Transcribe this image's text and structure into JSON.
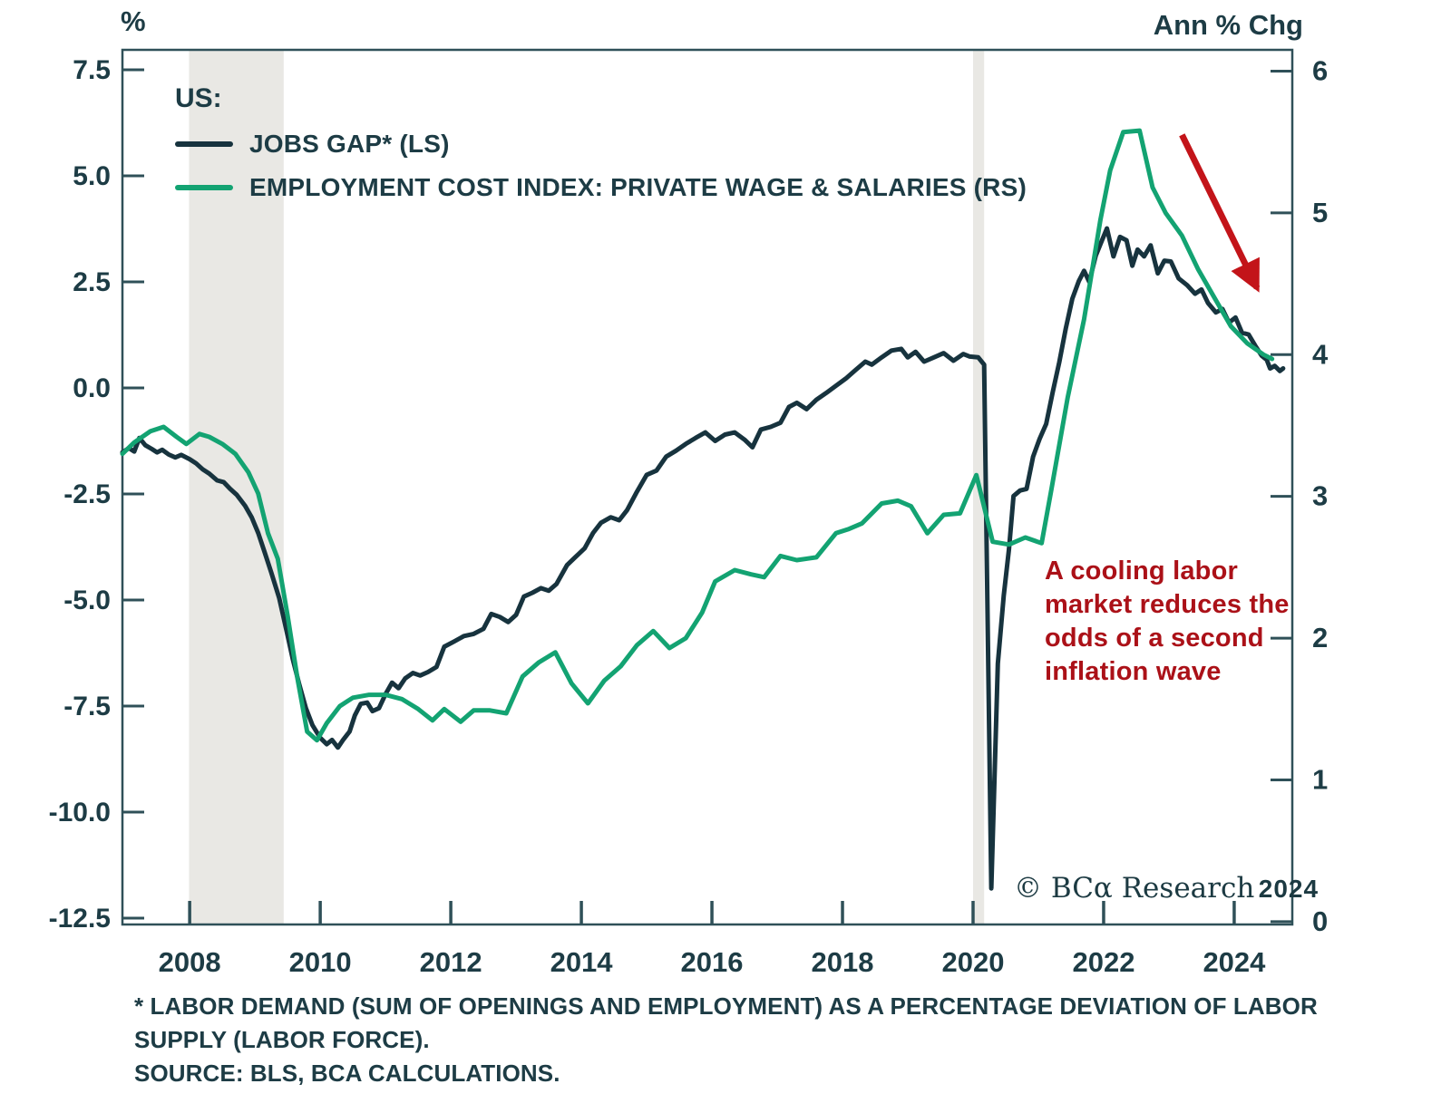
{
  "legend": {
    "group_label": "US:",
    "items": [
      {
        "label": "JOBS GAP* (LS)",
        "color": "#17333e"
      },
      {
        "label": "EMPLOYMENT COST INDEX: PRIVATE WAGE & SALARIES (RS)",
        "color": "#13a372"
      }
    ]
  },
  "annotation": {
    "color": "#ab1118",
    "lines": [
      "A cooling labor",
      "market reduces the",
      "odds of a second",
      "inflation wave"
    ]
  },
  "copyright": {
    "text": "© BCα Research",
    "year": "2024"
  },
  "footnote": {
    "lines": [
      "* LABOR DEMAND (SUM OF OPENINGS AND EMPLOYMENT) AS A PERCENTAGE DEVIATION OF LABOR",
      "SUPPLY (LABOR FORCE).",
      "SOURCE: BLS, BCA CALCULATIONS."
    ]
  },
  "chart_data": {
    "type": "line",
    "title": "",
    "colors": {
      "axis": "#2f5058",
      "tick_label": "#1d3c45",
      "recession_band": "#e9e8e4"
    },
    "x_axis": {
      "range": [
        2006.97,
        2024.89
      ],
      "tick_values": [
        2008,
        2010,
        2012,
        2014,
        2016,
        2018,
        2020,
        2022,
        2024
      ],
      "tick_labels": [
        "2008",
        "2010",
        "2012",
        "2014",
        "2016",
        "2018",
        "2020",
        "2022",
        "2024"
      ]
    },
    "left_axis": {
      "title": "%",
      "range": [
        -12.65,
        7.97
      ],
      "tick_values": [
        7.5,
        5.0,
        2.5,
        0.0,
        -2.5,
        -5.0,
        -7.5,
        -10.0,
        -12.5
      ],
      "tick_labels": [
        "7.5",
        "5.0",
        "2.5",
        "0.0",
        "-2.5",
        "-5.0",
        "-7.5",
        "-10.0",
        "-12.5"
      ]
    },
    "right_axis": {
      "title": "Ann % Chg",
      "range": [
        -0.02,
        6.15
      ],
      "tick_values": [
        6,
        5,
        4,
        3,
        2,
        1,
        0
      ],
      "tick_labels": [
        "6",
        "5",
        "4",
        "3",
        "2",
        "1",
        "0"
      ]
    },
    "recession_bands": [
      {
        "from": 2007.99,
        "to": 2009.44
      },
      {
        "from": 2020.0,
        "to": 2020.17
      }
    ],
    "arrow": {
      "x1": 2023.2,
      "y1": 5.55,
      "x2": 2024.35,
      "y2": 4.47,
      "axis": "right",
      "color": "#c31419"
    },
    "series": [
      {
        "name": "JOBS GAP* (LS)",
        "axis": "left",
        "color": "#17333e",
        "width": 5,
        "points": [
          [
            2006.97,
            -1.52
          ],
          [
            2007.07,
            -1.42
          ],
          [
            2007.15,
            -1.5
          ],
          [
            2007.23,
            -1.18
          ],
          [
            2007.32,
            -1.35
          ],
          [
            2007.42,
            -1.44
          ],
          [
            2007.5,
            -1.52
          ],
          [
            2007.58,
            -1.46
          ],
          [
            2007.68,
            -1.57
          ],
          [
            2007.78,
            -1.64
          ],
          [
            2007.87,
            -1.58
          ],
          [
            2008.0,
            -1.68
          ],
          [
            2008.1,
            -1.78
          ],
          [
            2008.2,
            -1.92
          ],
          [
            2008.3,
            -2.02
          ],
          [
            2008.42,
            -2.18
          ],
          [
            2008.52,
            -2.22
          ],
          [
            2008.62,
            -2.38
          ],
          [
            2008.72,
            -2.52
          ],
          [
            2008.85,
            -2.78
          ],
          [
            2008.95,
            -3.05
          ],
          [
            2009.05,
            -3.42
          ],
          [
            2009.15,
            -3.88
          ],
          [
            2009.25,
            -4.35
          ],
          [
            2009.37,
            -4.95
          ],
          [
            2009.48,
            -5.7
          ],
          [
            2009.58,
            -6.4
          ],
          [
            2009.68,
            -7.0
          ],
          [
            2009.78,
            -7.55
          ],
          [
            2009.88,
            -7.95
          ],
          [
            2010.0,
            -8.25
          ],
          [
            2010.1,
            -8.4
          ],
          [
            2010.18,
            -8.3
          ],
          [
            2010.27,
            -8.48
          ],
          [
            2010.35,
            -8.3
          ],
          [
            2010.45,
            -8.1
          ],
          [
            2010.53,
            -7.72
          ],
          [
            2010.62,
            -7.45
          ],
          [
            2010.72,
            -7.42
          ],
          [
            2010.8,
            -7.62
          ],
          [
            2010.9,
            -7.55
          ],
          [
            2011.0,
            -7.22
          ],
          [
            2011.1,
            -6.95
          ],
          [
            2011.2,
            -7.08
          ],
          [
            2011.3,
            -6.85
          ],
          [
            2011.42,
            -6.72
          ],
          [
            2011.53,
            -6.78
          ],
          [
            2011.65,
            -6.7
          ],
          [
            2011.78,
            -6.58
          ],
          [
            2011.9,
            -6.1
          ],
          [
            2012.05,
            -5.98
          ],
          [
            2012.2,
            -5.85
          ],
          [
            2012.35,
            -5.8
          ],
          [
            2012.5,
            -5.68
          ],
          [
            2012.62,
            -5.33
          ],
          [
            2012.75,
            -5.4
          ],
          [
            2012.88,
            -5.52
          ],
          [
            2013.0,
            -5.35
          ],
          [
            2013.12,
            -4.92
          ],
          [
            2013.25,
            -4.83
          ],
          [
            2013.38,
            -4.72
          ],
          [
            2013.5,
            -4.78
          ],
          [
            2013.62,
            -4.62
          ],
          [
            2013.78,
            -4.18
          ],
          [
            2013.9,
            -4.0
          ],
          [
            2014.05,
            -3.78
          ],
          [
            2014.18,
            -3.42
          ],
          [
            2014.3,
            -3.18
          ],
          [
            2014.45,
            -3.05
          ],
          [
            2014.58,
            -3.12
          ],
          [
            2014.7,
            -2.88
          ],
          [
            2014.85,
            -2.45
          ],
          [
            2015.0,
            -2.05
          ],
          [
            2015.15,
            -1.95
          ],
          [
            2015.3,
            -1.62
          ],
          [
            2015.45,
            -1.48
          ],
          [
            2015.6,
            -1.32
          ],
          [
            2015.75,
            -1.18
          ],
          [
            2015.9,
            -1.05
          ],
          [
            2016.05,
            -1.25
          ],
          [
            2016.2,
            -1.1
          ],
          [
            2016.35,
            -1.05
          ],
          [
            2016.5,
            -1.22
          ],
          [
            2016.62,
            -1.4
          ],
          [
            2016.75,
            -0.98
          ],
          [
            2016.9,
            -0.92
          ],
          [
            2017.05,
            -0.82
          ],
          [
            2017.18,
            -0.45
          ],
          [
            2017.3,
            -0.35
          ],
          [
            2017.45,
            -0.5
          ],
          [
            2017.6,
            -0.28
          ],
          [
            2017.75,
            -0.12
          ],
          [
            2017.9,
            0.05
          ],
          [
            2018.05,
            0.22
          ],
          [
            2018.2,
            0.42
          ],
          [
            2018.35,
            0.62
          ],
          [
            2018.45,
            0.55
          ],
          [
            2018.6,
            0.72
          ],
          [
            2018.75,
            0.88
          ],
          [
            2018.9,
            0.92
          ],
          [
            2019.0,
            0.72
          ],
          [
            2019.12,
            0.85
          ],
          [
            2019.25,
            0.62
          ],
          [
            2019.4,
            0.72
          ],
          [
            2019.55,
            0.82
          ],
          [
            2019.7,
            0.64
          ],
          [
            2019.85,
            0.8
          ],
          [
            2019.95,
            0.74
          ],
          [
            2020.08,
            0.72
          ],
          [
            2020.17,
            0.55
          ],
          [
            2020.28,
            -11.8
          ],
          [
            2020.38,
            -6.5
          ],
          [
            2020.47,
            -4.9
          ],
          [
            2020.55,
            -3.8
          ],
          [
            2020.62,
            -2.55
          ],
          [
            2020.72,
            -2.42
          ],
          [
            2020.82,
            -2.38
          ],
          [
            2020.92,
            -1.62
          ],
          [
            2021.02,
            -1.2
          ],
          [
            2021.12,
            -0.85
          ],
          [
            2021.22,
            -0.1
          ],
          [
            2021.32,
            0.6
          ],
          [
            2021.42,
            1.4
          ],
          [
            2021.52,
            2.1
          ],
          [
            2021.62,
            2.52
          ],
          [
            2021.7,
            2.76
          ],
          [
            2021.78,
            2.5
          ],
          [
            2021.88,
            3.12
          ],
          [
            2021.97,
            3.46
          ],
          [
            2022.05,
            3.76
          ],
          [
            2022.15,
            3.1
          ],
          [
            2022.25,
            3.56
          ],
          [
            2022.35,
            3.48
          ],
          [
            2022.44,
            2.88
          ],
          [
            2022.52,
            3.26
          ],
          [
            2022.62,
            3.1
          ],
          [
            2022.72,
            3.36
          ],
          [
            2022.83,
            2.7
          ],
          [
            2022.93,
            3.0
          ],
          [
            2023.03,
            2.98
          ],
          [
            2023.15,
            2.58
          ],
          [
            2023.28,
            2.42
          ],
          [
            2023.4,
            2.22
          ],
          [
            2023.5,
            2.32
          ],
          [
            2023.6,
            2.0
          ],
          [
            2023.72,
            1.78
          ],
          [
            2023.82,
            1.86
          ],
          [
            2023.92,
            1.54
          ],
          [
            2024.02,
            1.66
          ],
          [
            2024.12,
            1.3
          ],
          [
            2024.22,
            1.26
          ],
          [
            2024.32,
            1.0
          ],
          [
            2024.42,
            0.76
          ],
          [
            2024.5,
            0.66
          ],
          [
            2024.55,
            0.46
          ],
          [
            2024.62,
            0.52
          ],
          [
            2024.7,
            0.4
          ],
          [
            2024.75,
            0.46
          ]
        ]
      },
      {
        "name": "EMPLOYMENT COST INDEX: PRIVATE WAGE & SALARIES (RS)",
        "axis": "right",
        "color": "#13a372",
        "width": 5,
        "points": [
          [
            2006.97,
            3.3
          ],
          [
            2007.15,
            3.38
          ],
          [
            2007.4,
            3.46
          ],
          [
            2007.6,
            3.49
          ],
          [
            2007.8,
            3.42
          ],
          [
            2007.95,
            3.37
          ],
          [
            2008.15,
            3.44
          ],
          [
            2008.3,
            3.42
          ],
          [
            2008.5,
            3.37
          ],
          [
            2008.7,
            3.3
          ],
          [
            2008.9,
            3.17
          ],
          [
            2009.05,
            3.02
          ],
          [
            2009.2,
            2.74
          ],
          [
            2009.35,
            2.56
          ],
          [
            2009.5,
            2.16
          ],
          [
            2009.65,
            1.72
          ],
          [
            2009.8,
            1.34
          ],
          [
            2009.95,
            1.28
          ],
          [
            2010.1,
            1.4
          ],
          [
            2010.3,
            1.52
          ],
          [
            2010.5,
            1.58
          ],
          [
            2010.75,
            1.6
          ],
          [
            2011.0,
            1.6
          ],
          [
            2011.25,
            1.57
          ],
          [
            2011.5,
            1.5
          ],
          [
            2011.72,
            1.42
          ],
          [
            2011.9,
            1.5
          ],
          [
            2012.15,
            1.41
          ],
          [
            2012.35,
            1.49
          ],
          [
            2012.6,
            1.49
          ],
          [
            2012.85,
            1.47
          ],
          [
            2013.1,
            1.73
          ],
          [
            2013.35,
            1.83
          ],
          [
            2013.6,
            1.9
          ],
          [
            2013.85,
            1.68
          ],
          [
            2014.1,
            1.54
          ],
          [
            2014.35,
            1.7
          ],
          [
            2014.6,
            1.8
          ],
          [
            2014.85,
            1.95
          ],
          [
            2015.1,
            2.05
          ],
          [
            2015.35,
            1.93
          ],
          [
            2015.6,
            2.0
          ],
          [
            2015.85,
            2.18
          ],
          [
            2016.05,
            2.4
          ],
          [
            2016.35,
            2.48
          ],
          [
            2016.6,
            2.45
          ],
          [
            2016.8,
            2.43
          ],
          [
            2017.05,
            2.58
          ],
          [
            2017.3,
            2.55
          ],
          [
            2017.6,
            2.57
          ],
          [
            2017.9,
            2.74
          ],
          [
            2018.1,
            2.77
          ],
          [
            2018.3,
            2.81
          ],
          [
            2018.6,
            2.95
          ],
          [
            2018.85,
            2.97
          ],
          [
            2019.05,
            2.93
          ],
          [
            2019.3,
            2.74
          ],
          [
            2019.55,
            2.87
          ],
          [
            2019.8,
            2.88
          ],
          [
            2020.05,
            3.15
          ],
          [
            2020.3,
            2.68
          ],
          [
            2020.55,
            2.66
          ],
          [
            2020.8,
            2.71
          ],
          [
            2021.05,
            2.67
          ],
          [
            2021.2,
            3.05
          ],
          [
            2021.45,
            3.7
          ],
          [
            2021.7,
            4.25
          ],
          [
            2021.95,
            4.95
          ],
          [
            2022.1,
            5.3
          ],
          [
            2022.3,
            5.57
          ],
          [
            2022.55,
            5.58
          ],
          [
            2022.75,
            5.18
          ],
          [
            2022.95,
            5.0
          ],
          [
            2023.2,
            4.84
          ],
          [
            2023.45,
            4.6
          ],
          [
            2023.7,
            4.4
          ],
          [
            2023.95,
            4.2
          ],
          [
            2024.2,
            4.08
          ],
          [
            2024.45,
            4.0
          ],
          [
            2024.58,
            3.97
          ]
        ]
      }
    ]
  }
}
